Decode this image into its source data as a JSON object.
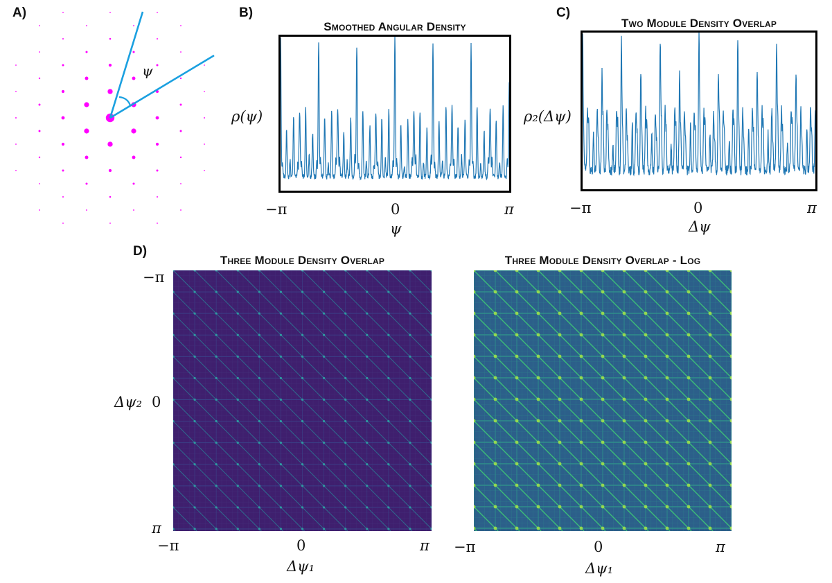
{
  "panels": {
    "a": {
      "letter": "A)",
      "angle_label": "ψ",
      "dot_color": "#ff00ff",
      "line_color": "#1aa0e0"
    },
    "b": {
      "letter": "B)",
      "title": "Smoothed Angular Density",
      "ylabel": "ρ(ψ)",
      "xlabel": "ψ",
      "xticks": [
        "−π",
        "0",
        "π"
      ]
    },
    "c": {
      "letter": "C)",
      "title": "Two Module Density Overlap",
      "ylabel": "ρ₂(Δψ)",
      "xlabel": "Δψ",
      "xticks": [
        "−π",
        "0",
        "π"
      ]
    },
    "d": {
      "letter": "D)",
      "left_title": "Three Module Density Overlap",
      "right_title": "Three Module Density Overlap - Log",
      "ylabel": "Δψ₂",
      "yticks": [
        "−π",
        "0",
        "π"
      ],
      "xlabel_left": "Δψ₁",
      "xlabel_right": "Δψ₁",
      "xticks_left": [
        "−π",
        "0",
        "π"
      ],
      "xticks_right": [
        "−π",
        "0",
        "π"
      ]
    }
  },
  "chart_data": [
    {
      "type": "line",
      "title": "Smoothed Angular Density",
      "xlabel": "ψ",
      "ylabel": "ρ(ψ)",
      "xlim": [
        -3.1416,
        3.1416
      ],
      "color": "#1f77b4",
      "x": [
        -3.1416,
        -2.0944,
        -1.0472,
        0,
        1.0472,
        2.0944,
        3.1416
      ],
      "major_peaks_relative": [
        1.0,
        0.94,
        0.94,
        1.0,
        0.94,
        0.94,
        0.66
      ],
      "secondary_peaks_x": [
        -2.618,
        -1.571,
        -0.5236,
        0.5236,
        1.571,
        2.618
      ],
      "secondary_peaks_relative": [
        0.52,
        0.55,
        0.52,
        0.52,
        0.55,
        0.52
      ]
    },
    {
      "type": "line",
      "title": "Two Module Density Overlap",
      "xlabel": "Δψ",
      "ylabel": "ρ₂(Δψ)",
      "xlim": [
        -3.1416,
        3.1416
      ],
      "color": "#1f77b4",
      "x": [
        -3.1416,
        -2.618,
        -2.0944,
        -1.571,
        -1.0472,
        -0.5236,
        0,
        0.5236,
        1.0472,
        1.571,
        2.0944,
        2.618,
        3.1416
      ],
      "relative": [
        0.98,
        0.72,
        0.96,
        0.72,
        0.96,
        0.72,
        1.0,
        0.72,
        0.96,
        0.72,
        0.96,
        0.72,
        0.42
      ]
    },
    {
      "type": "heatmap",
      "title": "Three Module Density Overlap",
      "xlabel": "Δψ₁",
      "ylabel": "Δψ₂",
      "xlim": [
        -3.1416,
        3.1416
      ],
      "ylim": [
        -3.1416,
        3.1416
      ],
      "scale": "linear",
      "colormap": "viridis"
    },
    {
      "type": "heatmap",
      "title": "Three Module Density Overlap - Log",
      "xlabel": "Δψ₁",
      "ylabel": "Δψ₂",
      "xlim": [
        -3.1416,
        3.1416
      ],
      "ylim": [
        -3.1416,
        3.1416
      ],
      "scale": "log",
      "colormap": "viridis"
    }
  ]
}
